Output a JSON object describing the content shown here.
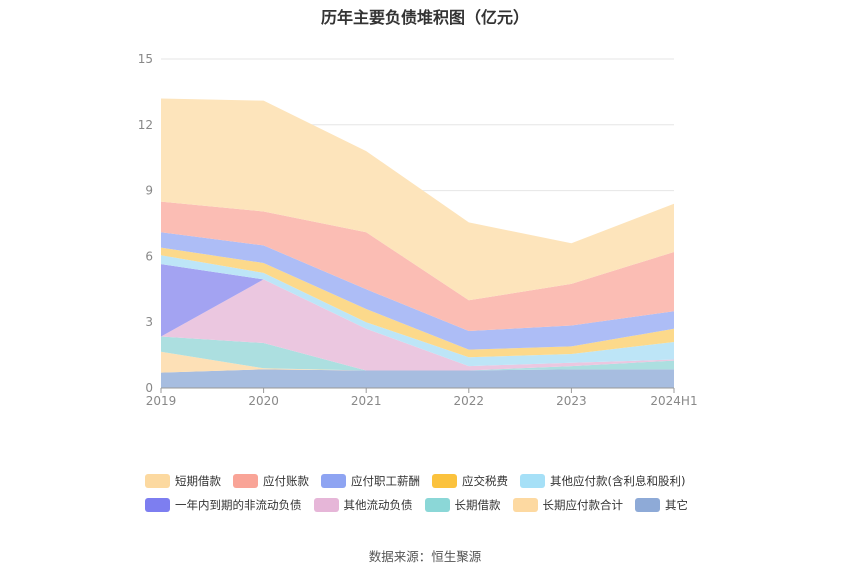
{
  "title": "历年主要负债堆积图（亿元）",
  "source": "数据来源：恒生聚源",
  "chart_data": {
    "type": "area",
    "stacked": true,
    "title": "历年主要负债堆积图（亿元）",
    "x": [
      "2019",
      "2020",
      "2021",
      "2022",
      "2023",
      "2024H1"
    ],
    "ylim": [
      0,
      15
    ],
    "yticks": [
      "0",
      "3",
      "6",
      "9",
      "12",
      "15"
    ],
    "grid": true,
    "legend_position": "bottom",
    "series": [
      {
        "name": "其它",
        "color": "#a7bde0",
        "values": [
          0.7,
          0.85,
          0.8,
          0.8,
          0.85,
          0.85
        ]
      },
      {
        "name": "长期应付款合计",
        "color": "#fde0b6",
        "values": [
          0.95,
          0.05,
          0.0,
          0.0,
          0.0,
          0.0
        ]
      },
      {
        "name": "长期借款",
        "color": "#acdfe0",
        "values": [
          0.7,
          1.15,
          0.0,
          0.0,
          0.15,
          0.4
        ]
      },
      {
        "name": "其他流动负债",
        "color": "#ebc7e0",
        "values": [
          0.0,
          2.9,
          1.9,
          0.2,
          0.15,
          0.05
        ]
      },
      {
        "name": "一年内到期的非流动负债",
        "color": "#a3a3f2",
        "values": [
          3.3,
          0.0,
          0.0,
          0.0,
          0.0,
          0.0
        ]
      },
      {
        "name": "其他应付款(含利息和股利)",
        "color": "#bde5f7",
        "values": [
          0.4,
          0.3,
          0.3,
          0.4,
          0.4,
          0.8
        ]
      },
      {
        "name": "应交税费",
        "color": "#fcd98b",
        "values": [
          0.35,
          0.45,
          0.6,
          0.35,
          0.35,
          0.6
        ]
      },
      {
        "name": "应付职工薪酬",
        "color": "#adbdf6",
        "values": [
          0.7,
          0.8,
          0.9,
          0.85,
          0.95,
          0.8
        ]
      },
      {
        "name": "应付账款",
        "color": "#fbbdb4",
        "values": [
          1.4,
          1.55,
          2.6,
          1.4,
          1.9,
          2.7
        ]
      },
      {
        "name": "短期借款",
        "color": "#fde4bb",
        "values": [
          4.7,
          5.05,
          3.7,
          3.55,
          1.85,
          2.2
        ]
      }
    ]
  },
  "legend": {
    "rows": [
      [
        {
          "name": "短期借款",
          "color": "#fcd9a0"
        },
        {
          "name": "应付账款",
          "color": "#f9a497"
        },
        {
          "name": "应付职工薪酬",
          "color": "#8ea4f2"
        },
        {
          "name": "应交税费",
          "color": "#fbc23d"
        },
        {
          "name": "其他应付款(含利息和股利)",
          "color": "#a6e0f7"
        }
      ],
      [
        {
          "name": "一年内到期的非流动负债",
          "color": "#7d7ef0"
        },
        {
          "name": "其他流动负债",
          "color": "#e6b6d8"
        },
        {
          "name": "长期借款",
          "color": "#8bd7d7"
        },
        {
          "name": "长期应付款合计",
          "color": "#fdd9a1"
        },
        {
          "name": "其它",
          "color": "#8eaad7"
        }
      ]
    ]
  }
}
